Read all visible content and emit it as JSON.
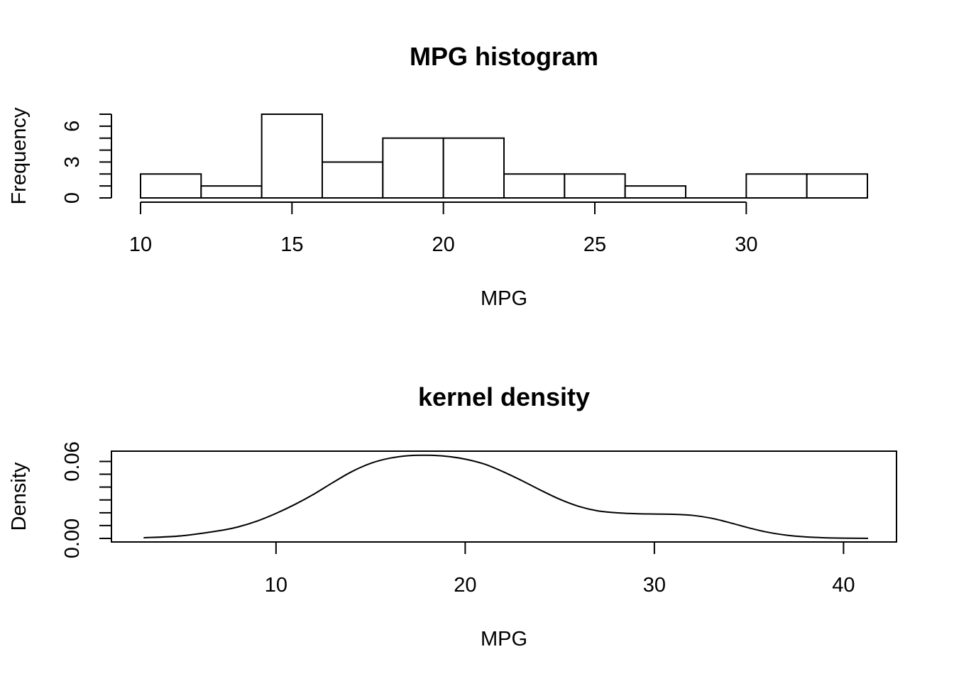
{
  "chart_data": [
    {
      "type": "bar",
      "title": "MPG histogram",
      "xlabel": "MPG",
      "ylabel": "Frequency",
      "bin_edges": [
        10,
        12,
        14,
        16,
        18,
        20,
        22,
        24,
        26,
        28,
        30,
        32,
        34
      ],
      "values": [
        2,
        1,
        7,
        3,
        5,
        5,
        2,
        2,
        1,
        0,
        2,
        2
      ],
      "xlim": [
        10,
        34
      ],
      "ylim": [
        0,
        7
      ],
      "x_ticks": [
        10,
        15,
        20,
        25,
        30
      ],
      "y_ticks": [
        0,
        3,
        6
      ],
      "grid": false
    },
    {
      "type": "line",
      "title": "kernel density",
      "xlabel": "MPG",
      "ylabel": "Density",
      "x": [
        3,
        5,
        7,
        8,
        9,
        10,
        11,
        12,
        13,
        14,
        15,
        16,
        17,
        18,
        19,
        20,
        21,
        22,
        23,
        24,
        25,
        26,
        27,
        28,
        29,
        30,
        31,
        32,
        33,
        34,
        35,
        36,
        37,
        38,
        39,
        40,
        41.3
      ],
      "y": [
        0.0005,
        0.002,
        0.006,
        0.009,
        0.0135,
        0.0195,
        0.0265,
        0.0345,
        0.0435,
        0.052,
        0.0585,
        0.0625,
        0.0645,
        0.0648,
        0.064,
        0.0618,
        0.058,
        0.052,
        0.045,
        0.0375,
        0.0305,
        0.025,
        0.0215,
        0.02,
        0.0193,
        0.019,
        0.0188,
        0.018,
        0.0158,
        0.0122,
        0.0082,
        0.0048,
        0.0025,
        0.0012,
        0.0005,
        0.0002,
        0.0001
      ],
      "xlim": [
        1.3,
        42.8
      ],
      "ylim": [
        0,
        0.068
      ],
      "x_ticks": [
        10,
        20,
        30,
        40
      ],
      "y_ticks": [
        0.0,
        0.06
      ],
      "y_tick_labels": [
        "0.00",
        "0.06"
      ],
      "grid": false
    }
  ]
}
